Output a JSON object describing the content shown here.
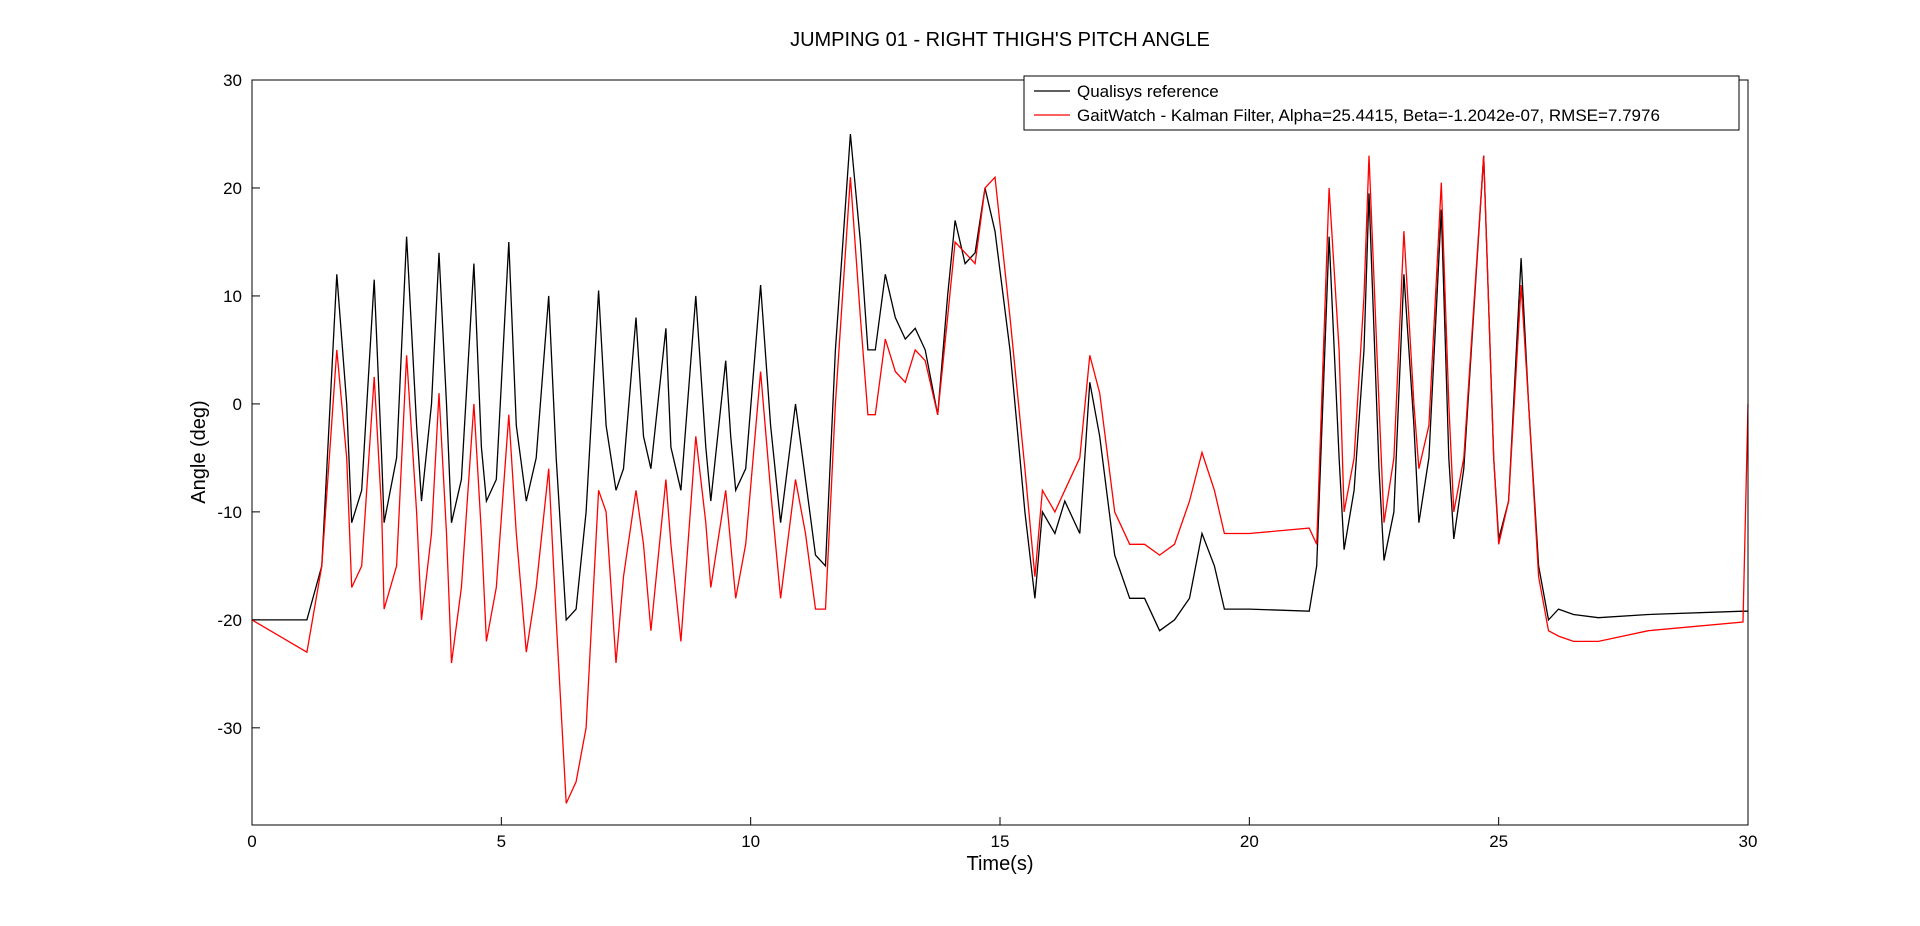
{
  "chart_data": {
    "type": "line",
    "title": "JUMPING 01 - RIGHT THIGH'S PITCH ANGLE",
    "x_label": "Time(s)",
    "y_label": "Angle (deg)",
    "xlim": [
      0,
      30
    ],
    "ylim": [
      -39,
      30
    ],
    "xticks": [
      0,
      5,
      10,
      15,
      20,
      25,
      30
    ],
    "yticks": [
      -30,
      -20,
      -10,
      0,
      10,
      20,
      30
    ],
    "legend": "top-right",
    "x": [
      0,
      1.1,
      1.4,
      1.7,
      1.9,
      2.0,
      2.2,
      2.45,
      2.6,
      2.65,
      2.9,
      3.1,
      3.3,
      3.4,
      3.6,
      3.75,
      3.9,
      4.0,
      4.2,
      4.45,
      4.6,
      4.7,
      4.9,
      5.15,
      5.3,
      5.5,
      5.7,
      5.95,
      6.1,
      6.3,
      6.5,
      6.7,
      6.95,
      7.1,
      7.3,
      7.45,
      7.7,
      7.85,
      8.0,
      8.3,
      8.4,
      8.6,
      8.9,
      9.1,
      9.2,
      9.5,
      9.6,
      9.7,
      9.9,
      10.2,
      10.4,
      10.6,
      10.9,
      11.1,
      11.3,
      11.5,
      11.7,
      12.0,
      12.2,
      12.35,
      12.5,
      12.7,
      12.9,
      13.1,
      13.3,
      13.5,
      13.75,
      13.95,
      14.1,
      14.3,
      14.5,
      14.7,
      14.9,
      15.2,
      15.5,
      15.7,
      15.85,
      16.1,
      16.3,
      16.6,
      16.8,
      17.0,
      17.3,
      17.6,
      17.9,
      18.2,
      18.5,
      18.8,
      19.05,
      19.3,
      19.5,
      20,
      21.2,
      21.35,
      21.6,
      21.8,
      21.9,
      22.1,
      22.3,
      22.4,
      22.6,
      22.7,
      22.9,
      23.1,
      23.3,
      23.4,
      23.6,
      23.85,
      24.0,
      24.1,
      24.3,
      24.7,
      24.9,
      25.0,
      25.2,
      25.45,
      25.6,
      25.8,
      26.0,
      26.2,
      26.5,
      27,
      28,
      29.9,
      30
    ],
    "series": [
      {
        "name": "Qualisys reference",
        "color": "#000000",
        "values": [
          -20,
          -20,
          -15,
          12,
          0,
          -11,
          -8,
          11.5,
          -5,
          -11,
          -5,
          15.5,
          -2,
          -9,
          0,
          14,
          0,
          -11,
          -7,
          13,
          -4,
          -9,
          -7,
          15,
          -2,
          -9,
          -5,
          10,
          -5,
          -20,
          -19,
          -10,
          10.5,
          -2,
          -8,
          -6,
          8,
          -3,
          -6,
          7,
          -4,
          -8,
          10,
          -4,
          -9,
          4,
          -3,
          -8,
          -6,
          11,
          -2,
          -11,
          0,
          -7,
          -14,
          -15,
          5,
          25,
          15,
          5,
          5,
          12,
          8,
          6,
          7,
          5,
          -1,
          10,
          17,
          13,
          14,
          20,
          16,
          5,
          -10,
          -18,
          -10,
          -12,
          -9,
          -12,
          2,
          -3,
          -14,
          -18,
          -18,
          -21,
          -20,
          -18,
          -12,
          -15,
          -19,
          -19,
          -19.2,
          -15,
          15.5,
          -5,
          -13.5,
          -8,
          5,
          19.5,
          -6,
          -14.5,
          -10,
          12,
          -2,
          -11,
          -5,
          18,
          -5,
          -12.5,
          -6,
          23,
          -5,
          -12.5,
          -9,
          13.5,
          0,
          -15,
          -20,
          -19,
          -19.5,
          -19.8,
          -19.5,
          -19.2,
          -19.2
        ]
      },
      {
        "name": "GaitWatch - Kalman Filter, Alpha=25.4415, Beta=-1.2042e-07, RMSE=7.7976",
        "color": "#ff0000",
        "values": [
          -20,
          -23,
          -15,
          5,
          -5,
          -17,
          -15,
          2.5,
          -10,
          -19,
          -15,
          4.5,
          -10,
          -20,
          -12,
          1,
          -12,
          -24,
          -17,
          0,
          -12,
          -22,
          -17,
          -1,
          -12,
          -23,
          -17,
          -6,
          -20,
          -37,
          -35,
          -30,
          -8,
          -10,
          -24,
          -16,
          -8,
          -13,
          -21,
          -7,
          -13,
          -22,
          -3,
          -11,
          -17,
          -8,
          -13,
          -18,
          -13,
          3,
          -8,
          -18,
          -7,
          -12,
          -19,
          -19,
          0,
          21,
          8,
          -1,
          -1,
          6,
          3,
          2,
          5,
          4,
          -1,
          8,
          15,
          14,
          13,
          20,
          21,
          8,
          -6,
          -16,
          -8,
          -10,
          -8,
          -5,
          4.5,
          1,
          -10,
          -13,
          -13,
          -14,
          -13,
          -9,
          -4.5,
          -8,
          -12,
          -12,
          -11.5,
          -13,
          20,
          5,
          -10,
          -5,
          10,
          23,
          0,
          -11,
          -5,
          16,
          0,
          -6,
          -2,
          20.5,
          0,
          -10,
          -5,
          23,
          -5,
          -13,
          -9,
          11,
          0,
          -16,
          -21,
          -21.5,
          -22,
          -22,
          -21,
          -20.2,
          0
        ]
      }
    ]
  }
}
